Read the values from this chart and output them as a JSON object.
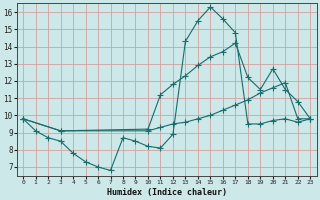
{
  "xlabel": "Humidex (Indice chaleur)",
  "xlim": [
    -0.5,
    23.5
  ],
  "ylim": [
    6.5,
    16.5
  ],
  "xticks": [
    0,
    1,
    2,
    3,
    4,
    5,
    6,
    7,
    8,
    9,
    10,
    11,
    12,
    13,
    14,
    15,
    16,
    17,
    18,
    19,
    20,
    21,
    22,
    23
  ],
  "yticks": [
    7,
    8,
    9,
    10,
    11,
    12,
    13,
    14,
    15,
    16
  ],
  "background_color": "#cce8e8",
  "grid_color": "#d4a0a0",
  "line_color": "#1a6b6b",
  "line1_x": [
    0,
    1,
    2,
    3,
    4,
    5,
    6,
    7,
    8,
    9,
    10,
    11,
    12,
    13,
    14,
    15,
    16,
    17,
    18,
    19,
    20,
    21,
    22,
    23
  ],
  "line1_y": [
    9.8,
    9.1,
    8.7,
    8.5,
    7.8,
    7.3,
    7.0,
    6.8,
    8.7,
    8.5,
    8.2,
    8.1,
    8.9,
    14.3,
    15.5,
    16.3,
    15.6,
    14.8,
    9.5,
    9.5,
    9.7,
    9.8,
    9.6,
    9.8
  ],
  "line2_x": [
    0,
    3,
    10,
    11,
    12,
    13,
    14,
    15,
    16,
    17,
    18,
    19,
    20,
    21,
    22,
    23
  ],
  "line2_y": [
    9.8,
    9.1,
    9.2,
    11.2,
    11.8,
    12.3,
    12.9,
    13.4,
    13.7,
    14.2,
    12.2,
    11.5,
    12.7,
    11.5,
    10.8,
    9.8
  ],
  "line3_x": [
    0,
    3,
    10,
    11,
    12,
    13,
    14,
    15,
    16,
    17,
    18,
    19,
    20,
    21,
    22,
    23
  ],
  "line3_y": [
    9.8,
    9.1,
    9.1,
    9.3,
    9.5,
    9.6,
    9.8,
    10.0,
    10.3,
    10.6,
    10.9,
    11.3,
    11.6,
    11.9,
    9.8,
    9.8
  ]
}
